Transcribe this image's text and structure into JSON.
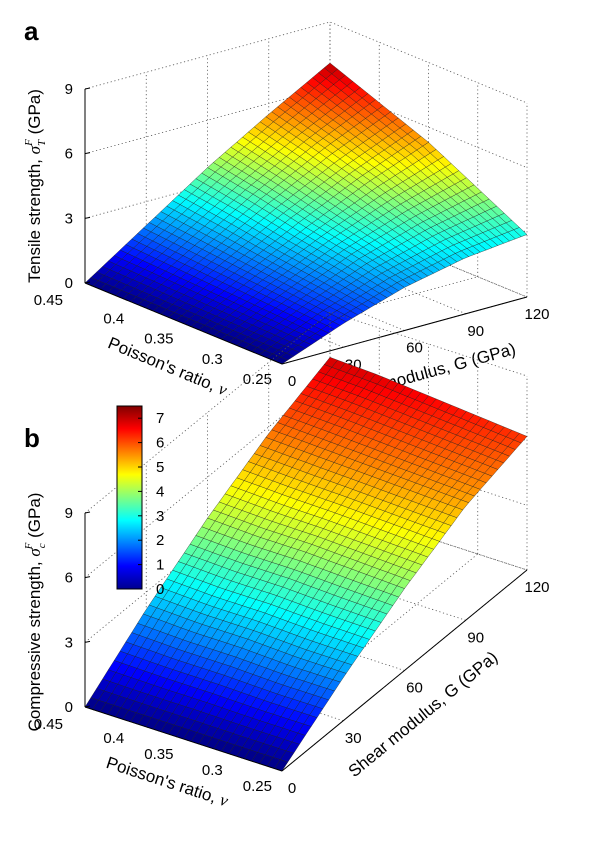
{
  "chart_data": [
    {
      "panel": "a",
      "type": "surface",
      "title": "",
      "xlabel": "Poisson's ratio, ν",
      "ylabel": "Shear modulus, G (GPa)",
      "zlabel_main": "Tensile strength, σ",
      "zlabel_sub": "T",
      "zlabel_sup": "F",
      "zlabel_unit": " (GPa)",
      "x_ticks": [
        "0.45",
        "0.4",
        "0.35",
        "0.3",
        "0.25"
      ],
      "y_ticks": [
        "0",
        "30",
        "60",
        "90",
        "120"
      ],
      "z_ticks": [
        "0",
        "3",
        "6",
        "9"
      ],
      "xlim": [
        0.25,
        0.45
      ],
      "ylim": [
        0,
        120
      ],
      "zlim": [
        0,
        9
      ],
      "grid": true,
      "nu": [
        0.45,
        0.4,
        0.35,
        0.3,
        0.25
      ],
      "G": [
        0,
        30,
        60,
        90,
        120
      ],
      "values": [
        [
          0,
          1.9,
          3.8,
          5.5,
          7.1
        ],
        [
          0,
          1.7,
          3.4,
          4.9,
          6.2
        ],
        [
          0,
          1.5,
          2.9,
          4.2,
          5.3
        ],
        [
          0,
          1.3,
          2.5,
          3.4,
          4.1
        ],
        [
          0,
          1.1,
          2.0,
          2.6,
          2.9
        ]
      ]
    },
    {
      "panel": "b",
      "type": "surface",
      "title": "",
      "xlabel": "Poisson's ratio, ν",
      "ylabel": "Shear modulus, G (GPa)",
      "zlabel_main": "Compressive strength, σ",
      "zlabel_sub": "c",
      "zlabel_sup": "F",
      "zlabel_unit": " (GPa)",
      "x_ticks": [
        "0.45",
        "0.4",
        "0.35",
        "0.3",
        "0.25"
      ],
      "y_ticks": [
        "0",
        "30",
        "60",
        "90",
        "120"
      ],
      "z_ticks": [
        "0",
        "3",
        "6",
        "9"
      ],
      "xlim": [
        0.25,
        0.45
      ],
      "ylim": [
        0,
        120
      ],
      "zlim": [
        0,
        9
      ],
      "grid": true,
      "nu": [
        0.45,
        0.4,
        0.35,
        0.3,
        0.25
      ],
      "G": [
        0,
        30,
        60,
        90,
        120
      ],
      "values": [
        [
          0,
          2.2,
          4.1,
          5.7,
          6.9
        ],
        [
          0,
          2.1,
          4.0,
          5.6,
          6.8
        ],
        [
          0,
          2.1,
          4.0,
          5.5,
          6.6
        ],
        [
          0,
          2.0,
          3.9,
          5.4,
          6.4
        ],
        [
          0,
          2.0,
          3.8,
          5.3,
          6.2
        ]
      ]
    }
  ],
  "colorbar": {
    "min": 0,
    "max": 7.5,
    "ticks": [
      "0",
      "1",
      "2",
      "3",
      "4",
      "5",
      "6",
      "7"
    ],
    "colormap": "jet"
  },
  "panel_letters": [
    "a",
    "b"
  ]
}
